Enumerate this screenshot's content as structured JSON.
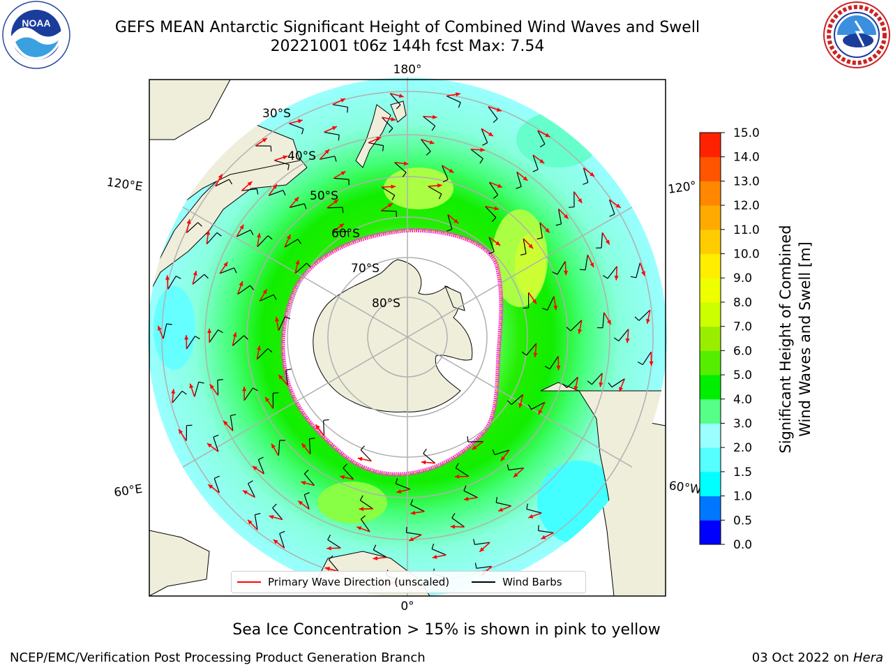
{
  "title": {
    "line1": "GEFS MEAN Antarctic Significant Height of Combined Wind Waves and Swell",
    "line2": "20221001 t06z 144h fcst   Max: 7.54"
  },
  "map": {
    "lon_labels": {
      "top": "180°",
      "bottom": "0°",
      "left_upper": "120°E",
      "left_lower": "60°E",
      "right_upper": "120°",
      "right_lower": "60°W"
    },
    "lat_labels": [
      "30°S",
      "40°S",
      "50°S",
      "60°S",
      "70°S",
      "80°S"
    ],
    "legend": {
      "wave": "Primary Wave Direction (unscaled)",
      "wind": "Wind Barbs"
    },
    "colors": {
      "wave_arrow": "#ff0000",
      "wind_barb": "#000000",
      "land": "#efeedb",
      "ice_pink": "#ff44dd",
      "ice_yellow": "#ffb020"
    }
  },
  "colorbar": {
    "title_line1": "Significant Height of Combined",
    "title_line2": "Wind Waves and Swell [m]",
    "ticks": [
      "15.0",
      "14.0",
      "13.0",
      "12.0",
      "11.0",
      "10.0",
      "9.0",
      "8.0",
      "7.0",
      "6.0",
      "5.0",
      "4.0",
      "3.0",
      "2.0",
      "1.5",
      "1.0",
      "0.5",
      "0.0"
    ],
    "colors": [
      "#0000ff",
      "#0077ff",
      "#00ffff",
      "#55ffff",
      "#99ffff",
      "#55ff88",
      "#00ee00",
      "#55ee00",
      "#99ee00",
      "#ccff00",
      "#eeff00",
      "#ffee00",
      "#ffcc00",
      "#ffaa00",
      "#ff8800",
      "#ff5500",
      "#ff2200",
      "#ff0000"
    ]
  },
  "footer": {
    "note": "Sea Ice Concentration > 15% is shown in pink to yellow",
    "credit": "NCEP/EMC/Verification Post Processing Product Generation Branch",
    "date": "03 Oct 2022 on",
    "host": "Hera"
  }
}
